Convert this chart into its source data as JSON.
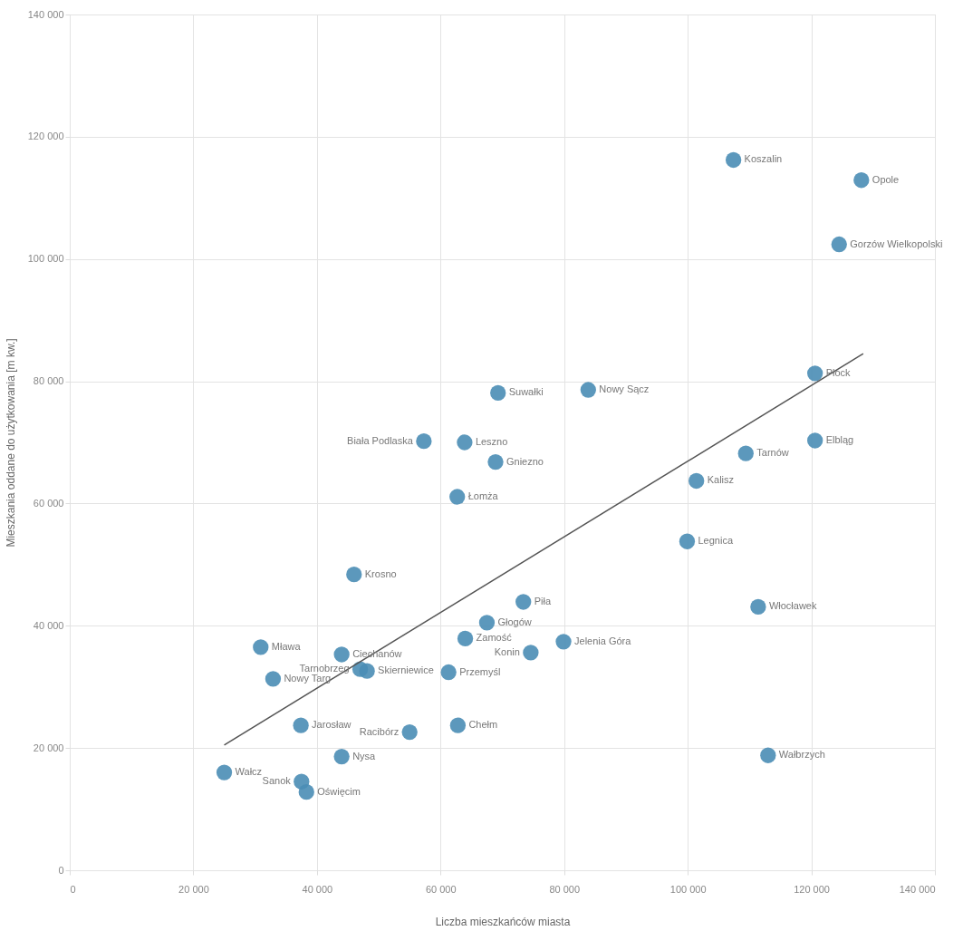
{
  "chart_data": {
    "type": "scatter",
    "xlabel": "Liczba mieszkańców miasta",
    "ylabel": "Mieszkania oddane do użytkowania [m kw.]",
    "xlim": [
      0,
      140000
    ],
    "ylim": [
      0,
      140000
    ],
    "xticks": [
      {
        "value": 0,
        "label": "0"
      },
      {
        "value": 20000,
        "label": "20 000"
      },
      {
        "value": 40000,
        "label": "40 000"
      },
      {
        "value": 60000,
        "label": "60 000"
      },
      {
        "value": 80000,
        "label": "80 000"
      },
      {
        "value": 100000,
        "label": "100 000"
      },
      {
        "value": 120000,
        "label": "120 000"
      },
      {
        "value": 140000,
        "label": "140 000"
      }
    ],
    "yticks": [
      {
        "value": 0,
        "label": "0"
      },
      {
        "value": 20000,
        "label": "20 000"
      },
      {
        "value": 40000,
        "label": "40 000"
      },
      {
        "value": 60000,
        "label": "60 000"
      },
      {
        "value": 80000,
        "label": "80 000"
      },
      {
        "value": 100000,
        "label": "100 000"
      },
      {
        "value": 120000,
        "label": "120 000"
      },
      {
        "value": 140000,
        "label": "140 000"
      }
    ],
    "grid": true,
    "series": [
      {
        "marker": "circle",
        "color": "#4a8db5",
        "x": [
          107400,
          128100,
          124500,
          120600,
          120600,
          109400,
          101400,
          99900,
          111400,
          113000,
          69300,
          83900,
          57300,
          63900,
          68900,
          62700,
          46000,
          73400,
          67500,
          64000,
          74600,
          79900,
          61300,
          44000,
          47000,
          48100,
          30900,
          32900,
          37400,
          55000,
          62800,
          44000,
          25000,
          37500,
          38300
        ],
        "values": [
          116200,
          112900,
          102400,
          81300,
          70300,
          68200,
          63700,
          53800,
          43100,
          18800,
          78100,
          78600,
          70200,
          70000,
          66800,
          61100,
          48400,
          43900,
          40500,
          37900,
          35600,
          37400,
          32400,
          35300,
          32900,
          32600,
          36500,
          31300,
          23700,
          22600,
          23700,
          18600,
          16000,
          14500,
          12800
        ]
      },
      {
        "type": "line",
        "color": "#555555",
        "line_style": "solid",
        "x": [
          25000,
          128400
        ],
        "values": [
          20500,
          84500
        ]
      }
    ],
    "annotations": [
      {
        "text": "Koszalin",
        "x": 107400,
        "y": 116200
      },
      {
        "text": "Opole",
        "x": 128100,
        "y": 112900
      },
      {
        "text": "Gorzów Wielkopolski",
        "x": 124500,
        "y": 102400
      },
      {
        "text": "Płock",
        "x": 120600,
        "y": 81300
      },
      {
        "text": "Elbląg",
        "x": 120600,
        "y": 70300
      },
      {
        "text": "Tarnów",
        "x": 109400,
        "y": 68200
      },
      {
        "text": "Kalisz",
        "x": 101400,
        "y": 63700
      },
      {
        "text": "Legnica",
        "x": 99900,
        "y": 53800
      },
      {
        "text": "Włocławek",
        "x": 111400,
        "y": 43100
      },
      {
        "text": "Wałbrzych",
        "x": 113000,
        "y": 18800
      },
      {
        "text": "Suwałki",
        "x": 69300,
        "y": 78100
      },
      {
        "text": "Nowy Sącz",
        "x": 83900,
        "y": 78600
      },
      {
        "text": "Biała Podlaska",
        "x": 57300,
        "y": 70200
      },
      {
        "text": "Leszno",
        "x": 63900,
        "y": 70000
      },
      {
        "text": "Gniezno",
        "x": 68900,
        "y": 66800
      },
      {
        "text": "Łomża",
        "x": 62700,
        "y": 61100
      },
      {
        "text": "Krosno",
        "x": 46000,
        "y": 48400
      },
      {
        "text": "Piła",
        "x": 73400,
        "y": 43900
      },
      {
        "text": "Głogów",
        "x": 67500,
        "y": 40500
      },
      {
        "text": "Zamość",
        "x": 64000,
        "y": 37900
      },
      {
        "text": "Konin",
        "x": 74600,
        "y": 35600
      },
      {
        "text": "Jelenia Góra",
        "x": 79900,
        "y": 37400
      },
      {
        "text": "Przemyśl",
        "x": 61300,
        "y": 32400
      },
      {
        "text": "Ciechanów",
        "x": 44000,
        "y": 35300
      },
      {
        "text": "Tarnobrzeg",
        "x": 47000,
        "y": 32900
      },
      {
        "text": "Skierniewice",
        "x": 48100,
        "y": 32600
      },
      {
        "text": "Mława",
        "x": 30900,
        "y": 36500
      },
      {
        "text": "Nowy Targ",
        "x": 32900,
        "y": 31300
      },
      {
        "text": "Jarosław",
        "x": 37400,
        "y": 23700
      },
      {
        "text": "Racibórz",
        "x": 55000,
        "y": 22600
      },
      {
        "text": "Chełm",
        "x": 62800,
        "y": 23700
      },
      {
        "text": "Nysa",
        "x": 44000,
        "y": 18600
      },
      {
        "text": "Wałcz",
        "x": 25000,
        "y": 16000
      },
      {
        "text": "Sanok",
        "x": 37500,
        "y": 14500
      },
      {
        "text": "Oświęcim",
        "x": 38300,
        "y": 12800
      }
    ]
  }
}
